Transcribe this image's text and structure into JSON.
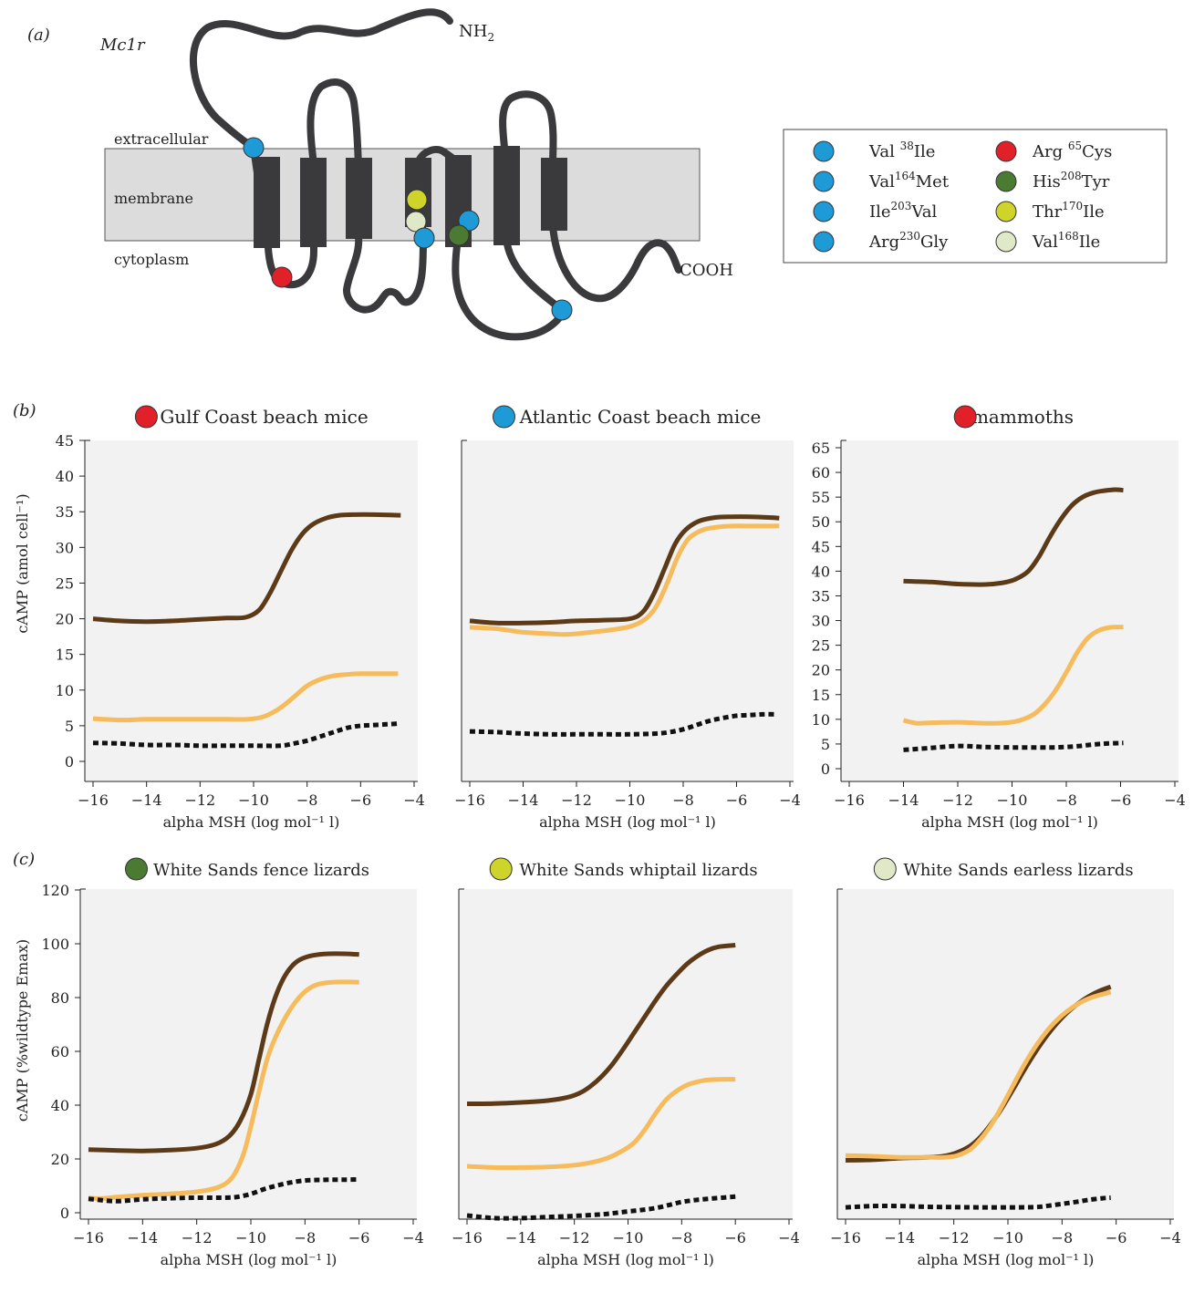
{
  "colors": {
    "membrane_fill": "#dcdcdc",
    "protein": "#3a3a3c",
    "panel_bg": "#f2f2f2",
    "wildtype": "#5c3a17",
    "derived": "#f6bb5c",
    "control": "#111111",
    "blue": "#1e9ad6",
    "red": "#e2202a",
    "green": "#4b7a32",
    "yellow": "#cfd42a",
    "pale": "#dfe9c8"
  },
  "panel_a": {
    "label": "(a)",
    "gene": "Mc1r",
    "nterm": "NH",
    "nterm_sub": "2",
    "cterm": "COOH",
    "extracellular": "extracellular",
    "membrane": "membrane",
    "cytoplasm": "cytoplasm",
    "legend": [
      {
        "pre": "Val ",
        "sup": "38",
        "post": "Ile",
        "color": "blue",
        "icon": "blue-dot-icon"
      },
      {
        "pre": "Arg ",
        "sup": "65",
        "post": "Cys",
        "color": "red",
        "icon": "red-dot-icon"
      },
      {
        "pre": "Val",
        "sup": "164",
        "post": "Met",
        "color": "blue",
        "icon": "blue-dot-icon"
      },
      {
        "pre": "His",
        "sup": "208",
        "post": "Tyr",
        "color": "green",
        "icon": "green-dot-icon"
      },
      {
        "pre": "Ile",
        "sup": "203",
        "post": "Val",
        "color": "blue",
        "icon": "blue-dot-icon"
      },
      {
        "pre": "Thr",
        "sup": "170",
        "post": "Ile",
        "color": "yellow",
        "icon": "yellow-dot-icon"
      },
      {
        "pre": "Arg",
        "sup": "230",
        "post": "Gly",
        "color": "blue",
        "icon": "blue-dot-icon"
      },
      {
        "pre": "Val",
        "sup": "168",
        "post": "Ile",
        "color": "pale",
        "icon": "pale-dot-icon"
      }
    ]
  },
  "panel_b_label": "(b)",
  "panel_c_label": "(c)",
  "chart_data": [
    {
      "type": "line",
      "row": "b",
      "title": "Gulf Coast beach mice",
      "title_dot": "red",
      "xlabel": "alpha MSH (log mol⁻¹ l)",
      "ylabel": "cAMP (amol cell⁻¹)",
      "xlim": [
        -16,
        -4
      ],
      "ylim": [
        0,
        45
      ],
      "xticks": [
        -16,
        -14,
        -12,
        -10,
        -8,
        -6,
        -4
      ],
      "yticks": [
        0,
        5,
        10,
        15,
        20,
        25,
        30,
        35,
        40,
        45
      ],
      "series": [
        {
          "style": "wildtype",
          "x": [
            -16,
            -15,
            -14,
            -13,
            -12,
            -11,
            -10.3,
            -9.8,
            -9.4,
            -9,
            -8.6,
            -8.2,
            -7.8,
            -7.3,
            -6.8,
            -6.2,
            -5.5,
            -4.5
          ],
          "y": [
            20,
            19.7,
            19.6,
            19.7,
            19.9,
            20.1,
            20.2,
            21.2,
            23.5,
            26.5,
            29.5,
            31.8,
            33.2,
            34.1,
            34.5,
            34.6,
            34.6,
            34.5
          ]
        },
        {
          "style": "derived",
          "x": [
            -16,
            -15,
            -14,
            -13,
            -12,
            -11,
            -10.2,
            -9.6,
            -9,
            -8.5,
            -8,
            -7.5,
            -7,
            -6.5,
            -6,
            -5.5,
            -5,
            -4.6
          ],
          "y": [
            6,
            5.8,
            5.9,
            5.9,
            5.9,
            5.9,
            5.9,
            6.3,
            7.5,
            9,
            10.6,
            11.5,
            12,
            12.2,
            12.3,
            12.3,
            12.3,
            12.3
          ]
        },
        {
          "style": "control",
          "x": [
            -16,
            -15,
            -14,
            -13,
            -12,
            -11,
            -10,
            -9,
            -8.5,
            -8,
            -7.5,
            -7,
            -6.5,
            -6,
            -5.5,
            -5,
            -4.6
          ],
          "y": [
            2.6,
            2.5,
            2.3,
            2.3,
            2.2,
            2.2,
            2.2,
            2.2,
            2.5,
            2.9,
            3.5,
            4.1,
            4.7,
            5,
            5.1,
            5.2,
            5.3
          ]
        }
      ]
    },
    {
      "type": "line",
      "row": "b",
      "title": "Atlantic Coast beach mice",
      "title_dot": "blue",
      "xlabel": "alpha MSH (log mol⁻¹ l)",
      "xlim": [
        -16,
        -4
      ],
      "ylim": [
        0,
        45
      ],
      "xticks": [
        -16,
        -14,
        -12,
        -10,
        -8,
        -6,
        -4
      ],
      "yticks": [],
      "series": [
        {
          "style": "wildtype",
          "x": [
            -16,
            -15,
            -14,
            -13,
            -12,
            -11,
            -10,
            -9.5,
            -9.1,
            -8.7,
            -8.3,
            -7.9,
            -7.4,
            -6.8,
            -6.2,
            -5.5,
            -4.8,
            -4.4
          ],
          "y": [
            19.7,
            19.4,
            19.4,
            19.5,
            19.7,
            19.8,
            20,
            21,
            23.5,
            27,
            30.5,
            32.5,
            33.7,
            34.2,
            34.3,
            34.3,
            34.2,
            34.1
          ]
        },
        {
          "style": "derived",
          "x": [
            -16,
            -15,
            -14,
            -13,
            -12.5,
            -12,
            -11,
            -10,
            -9.4,
            -9,
            -8.6,
            -8.2,
            -7.8,
            -7.3,
            -6.8,
            -6.2,
            -5.5,
            -4.8,
            -4.4
          ],
          "y": [
            18.8,
            18.6,
            18.1,
            17.9,
            17.8,
            17.9,
            18.3,
            18.9,
            20,
            21.8,
            25,
            28.7,
            31.2,
            32.4,
            32.8,
            33,
            33,
            33,
            33
          ]
        },
        {
          "style": "control",
          "x": [
            -16,
            -15,
            -14,
            -13,
            -12,
            -11,
            -10,
            -9,
            -8.5,
            -8,
            -7.5,
            -7,
            -6.5,
            -6,
            -5.5,
            -5,
            -4.5
          ],
          "y": [
            4.2,
            4.1,
            3.9,
            3.8,
            3.8,
            3.8,
            3.8,
            3.9,
            4.1,
            4.5,
            5.1,
            5.7,
            6.1,
            6.4,
            6.5,
            6.6,
            6.6
          ]
        }
      ]
    },
    {
      "type": "line",
      "row": "b",
      "title": "mammoths",
      "title_dot": "red",
      "xlabel": "alpha MSH (log mol⁻¹ l)",
      "xlim": [
        -16,
        -4
      ],
      "ylim": [
        0,
        65
      ],
      "xticks": [
        -16,
        -14,
        -12,
        -10,
        -8,
        -6,
        -4
      ],
      "yticks": [
        0,
        5,
        10,
        15,
        20,
        25,
        30,
        35,
        40,
        45,
        50,
        55,
        60,
        65
      ],
      "series": [
        {
          "style": "wildtype",
          "x": [
            -14,
            -13,
            -12,
            -11,
            -10.4,
            -9.9,
            -9.4,
            -9,
            -8.6,
            -8.2,
            -7.8,
            -7.4,
            -7,
            -6.6,
            -6.2,
            -5.9
          ],
          "y": [
            38,
            37.8,
            37.4,
            37.3,
            37.6,
            38.3,
            40,
            43,
            47,
            50.5,
            53.3,
            55,
            55.9,
            56.3,
            56.5,
            56.4
          ]
        },
        {
          "style": "derived",
          "x": [
            -14,
            -13.5,
            -13,
            -12,
            -11,
            -10.2,
            -9.7,
            -9.2,
            -8.8,
            -8.4,
            -8,
            -7.6,
            -7.2,
            -6.8,
            -6.4,
            -5.9
          ],
          "y": [
            9.8,
            9.2,
            9.3,
            9.4,
            9.2,
            9.3,
            9.8,
            11,
            13,
            15.8,
            19.5,
            23.5,
            26.5,
            28,
            28.6,
            28.7
          ]
        },
        {
          "style": "control",
          "x": [
            -14,
            -13,
            -12,
            -11,
            -10,
            -9,
            -8.5,
            -8,
            -7.5,
            -7,
            -6.5,
            -5.9
          ],
          "y": [
            3.8,
            4.2,
            4.6,
            4.4,
            4.3,
            4.3,
            4.3,
            4.4,
            4.6,
            4.9,
            5.1,
            5.2
          ]
        }
      ]
    },
    {
      "type": "line",
      "row": "c",
      "title": "White Sands fence lizards",
      "title_dot": "green",
      "xlabel": "alpha MSH (log mol⁻¹ l)",
      "ylabel": "cAMP (%wildtype Emax)",
      "xlim": [
        -16,
        -4
      ],
      "ylim": [
        0,
        120
      ],
      "xticks": [
        -16,
        -14,
        -12,
        -10,
        -8,
        -6,
        -4
      ],
      "yticks": [
        0,
        20,
        40,
        60,
        80,
        100,
        120
      ],
      "series": [
        {
          "style": "wildtype",
          "x": [
            -16,
            -15,
            -14,
            -13,
            -12,
            -11.3,
            -10.8,
            -10.4,
            -10,
            -9.7,
            -9.4,
            -9.1,
            -8.8,
            -8.5,
            -8.2,
            -7.8,
            -7.3,
            -6.8,
            -6.3,
            -6
          ],
          "y": [
            23.5,
            23.2,
            23,
            23.3,
            24,
            25.5,
            28.5,
            34,
            44,
            57,
            70,
            80,
            87,
            91.5,
            94,
            95.5,
            96.2,
            96.3,
            96.2,
            96
          ]
        },
        {
          "style": "derived",
          "x": [
            -16,
            -15.5,
            -15,
            -14,
            -13,
            -12,
            -11.2,
            -10.7,
            -10.3,
            -10,
            -9.7,
            -9.4,
            -9.1,
            -8.7,
            -8.3,
            -7.9,
            -7.5,
            -7,
            -6.5,
            -6
          ],
          "y": [
            5.5,
            5.3,
            5.8,
            6.5,
            7,
            7.8,
            9.5,
            13,
            21,
            32,
            45,
            57,
            65,
            73,
            79,
            83,
            85,
            85.7,
            85.8,
            85.7
          ]
        },
        {
          "style": "control",
          "x": [
            -16,
            -15,
            -14,
            -13,
            -12,
            -11,
            -10.5,
            -10,
            -9.5,
            -9,
            -8.5,
            -8,
            -7.5,
            -7,
            -6.5,
            -6
          ],
          "y": [
            5.2,
            4.3,
            5,
            5.4,
            5.6,
            5.6,
            5.9,
            7,
            8.8,
            10.2,
            11.3,
            12,
            12.2,
            12.3,
            12.3,
            12.4
          ]
        }
      ]
    },
    {
      "type": "line",
      "row": "c",
      "title": "White Sands whiptail lizards",
      "title_dot": "yellow",
      "xlabel": "alpha MSH (log mol⁻¹ l)",
      "xlim": [
        -16,
        -4
      ],
      "ylim": [
        0,
        120
      ],
      "xticks": [
        -16,
        -14,
        -12,
        -10,
        -8,
        -6,
        -4
      ],
      "yticks": [],
      "series": [
        {
          "style": "wildtype",
          "x": [
            -16,
            -15,
            -14,
            -13,
            -12.3,
            -11.8,
            -11.4,
            -11,
            -10.6,
            -10.2,
            -9.8,
            -9.4,
            -9,
            -8.6,
            -8.2,
            -7.8,
            -7.4,
            -7,
            -6.6,
            -6
          ],
          "y": [
            40.5,
            40.6,
            41,
            41.7,
            42.8,
            44.5,
            47,
            50.5,
            55,
            60.5,
            66.5,
            72.5,
            78.5,
            84,
            88.5,
            92.5,
            95.5,
            97.7,
            98.9,
            99.5
          ]
        },
        {
          "style": "derived",
          "x": [
            -16,
            -15,
            -14,
            -13,
            -12,
            -11.4,
            -10.8,
            -10.3,
            -9.8,
            -9.4,
            -9,
            -8.6,
            -8.2,
            -7.8,
            -7.4,
            -7,
            -6.5,
            -6
          ],
          "y": [
            17.3,
            16.8,
            16.8,
            17,
            17.7,
            18.6,
            20.2,
            22.5,
            25.8,
            30.5,
            36.5,
            41.8,
            45.2,
            47.5,
            48.7,
            49.4,
            49.6,
            49.6
          ]
        },
        {
          "style": "control",
          "x": [
            -16,
            -15,
            -14,
            -13,
            -12,
            -11,
            -10.5,
            -10,
            -9.5,
            -9,
            -8.5,
            -8,
            -7.5,
            -7,
            -6.5,
            -6
          ],
          "y": [
            -1,
            -2,
            -2,
            -1.6,
            -1.2,
            -0.6,
            -0.1,
            0.5,
            1,
            1.7,
            2.8,
            4,
            4.7,
            5.2,
            5.6,
            6
          ]
        }
      ]
    },
    {
      "type": "line",
      "row": "c",
      "title": "White Sands earless lizards",
      "title_dot": "pale",
      "xlabel": "alpha MSH (log mol⁻¹ l)",
      "xlim": [
        -16,
        -4
      ],
      "ylim": [
        0,
        120
      ],
      "xticks": [
        -16,
        -14,
        -12,
        -10,
        -8,
        -6,
        -4
      ],
      "yticks": [],
      "series": [
        {
          "style": "wildtype",
          "x": [
            -16,
            -15,
            -14,
            -13,
            -12.4,
            -11.9,
            -11.4,
            -11,
            -10.6,
            -10.2,
            -9.8,
            -9.4,
            -9,
            -8.6,
            -8.2,
            -7.8,
            -7.4,
            -7,
            -6.6,
            -6.2
          ],
          "y": [
            19.5,
            19.7,
            20.3,
            20.6,
            21,
            22.3,
            24.8,
            28.3,
            33.3,
            39.3,
            46,
            53,
            59.5,
            65.3,
            70.3,
            74.5,
            77.8,
            80.5,
            82.5,
            84
          ]
        },
        {
          "style": "derived",
          "x": [
            -16,
            -15,
            -14,
            -13,
            -12.4,
            -11.9,
            -11.4,
            -11,
            -10.6,
            -10.2,
            -9.8,
            -9.4,
            -9,
            -8.6,
            -8.2,
            -7.8,
            -7.4,
            -7,
            -6.6,
            -6.2
          ],
          "y": [
            21.3,
            21,
            20.6,
            20.6,
            20.6,
            21.2,
            23.5,
            27.5,
            33,
            40,
            47.5,
            55,
            61.5,
            67,
            71.5,
            75,
            77.7,
            79.7,
            81,
            82
          ]
        },
        {
          "style": "control",
          "x": [
            -16,
            -15,
            -14,
            -13,
            -12,
            -11,
            -10,
            -9,
            -8.5,
            -8,
            -7.5,
            -7,
            -6.5,
            -6.2
          ],
          "y": [
            2,
            2.5,
            2.5,
            2.2,
            2.1,
            2,
            2,
            2.1,
            2.6,
            3.3,
            4,
            4.8,
            5.4,
            5.6
          ]
        }
      ]
    }
  ]
}
